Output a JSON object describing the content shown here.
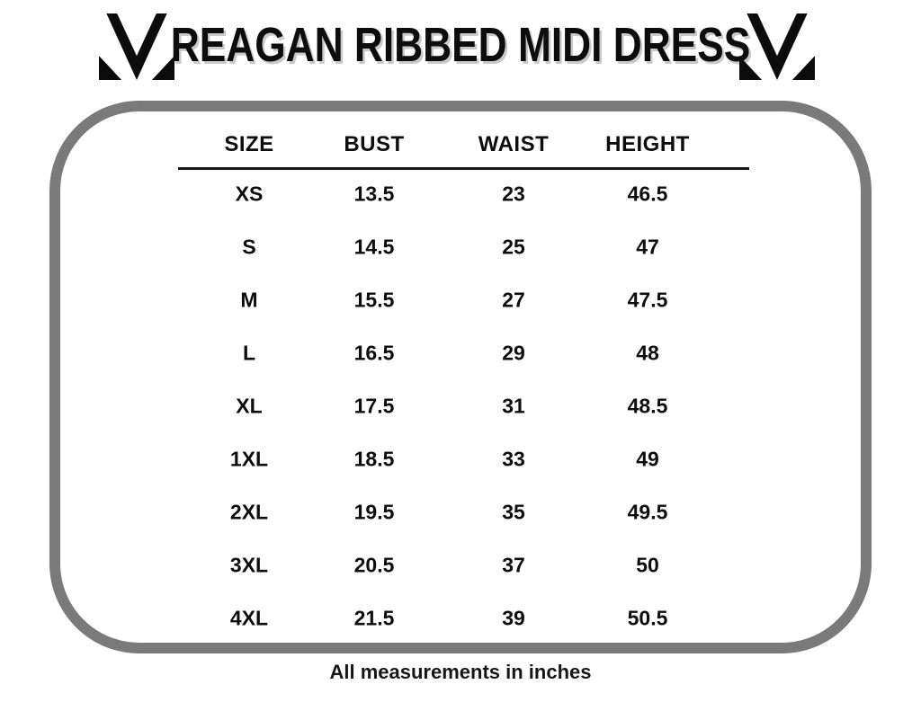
{
  "header": {
    "title": "REAGAN RIBBED MIDI DRESS",
    "logo": "brand-monogram-m-icon"
  },
  "size_chart": {
    "columns": [
      "SIZE",
      "BUST",
      "WAIST",
      "HEIGHT"
    ],
    "rows": [
      [
        "XS",
        "13.5",
        "23",
        "46.5"
      ],
      [
        "S",
        "14.5",
        "25",
        "47"
      ],
      [
        "M",
        "15.5",
        "27",
        "47.5"
      ],
      [
        "L",
        "16.5",
        "29",
        "48"
      ],
      [
        "XL",
        "17.5",
        "31",
        "48.5"
      ],
      [
        "1XL",
        "18.5",
        "33",
        "49"
      ],
      [
        "2XL",
        "19.5",
        "35",
        "49.5"
      ],
      [
        "3XL",
        "20.5",
        "37",
        "50"
      ],
      [
        "4XL",
        "21.5",
        "39",
        "50.5"
      ]
    ]
  },
  "footer": {
    "note": "All measurements in inches"
  },
  "colors": {
    "panel_border": "#7a7a7a",
    "text": "#0d0d0d",
    "title_shadow": "#c9c9c9"
  }
}
